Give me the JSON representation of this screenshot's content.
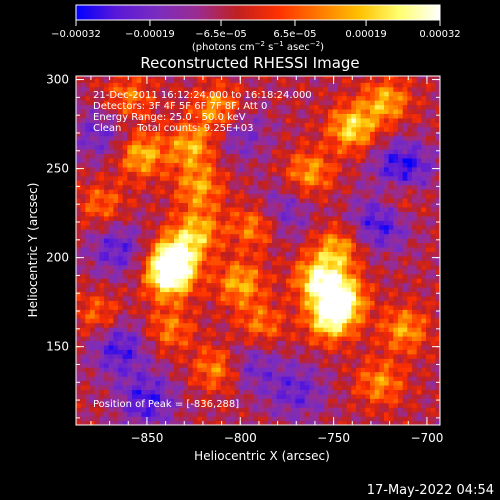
{
  "chart_data": {
    "type": "heatmap",
    "title": "Reconstructed RHESSI Image",
    "xlabel": "Heliocentric X (arcsec)",
    "ylabel": "Heliocentric Y (arcsec)",
    "xlim": [
      -888,
      -693
    ],
    "ylim": [
      106,
      302
    ],
    "x_ticks": [
      -850,
      -800,
      -750,
      -700
    ],
    "x_tick_labels": [
      "−850",
      "−800",
      "−750",
      "−700"
    ],
    "y_ticks": [
      150,
      200,
      250,
      300
    ],
    "y_tick_labels": [
      "150",
      "200",
      "250",
      "300"
    ],
    "colorbar": {
      "range": [
        -0.00032,
        0.00032
      ],
      "ticks": [
        -0.00032,
        -0.00019,
        -6.5e-05,
        6.5e-05,
        0.00019,
        0.00032
      ],
      "tick_labels": [
        "−0.00032",
        "−0.00019",
        "−6.5e−05",
        "6.5e−05",
        "0.00019",
        "0.00032"
      ],
      "unit_main": "(photons cm",
      "unit_exp1": "−2",
      "unit_mid": " s",
      "unit_exp2": "−1",
      "unit_mid2": " asec",
      "unit_exp3": "−2",
      "unit_end": ")",
      "colors": [
        "#0000ff",
        "#5a18d8",
        "#7a2cc0",
        "#9a2c90",
        "#c02020",
        "#ff3000",
        "#ff7800",
        "#ffc000",
        "#ffff70",
        "#ffffff"
      ]
    },
    "info_lines": [
      "21-Dec-2011 16:12:24.000 to 16:18:24.000",
      "Detectors: 3F 4F 5F 6F 7F 8F, Att 0",
      "Energy Range: 25.0 - 50.0 keV",
      "Clean     Total counts: 9.25E+03"
    ],
    "peak_label": "Position of Peak = [-836,288]",
    "peak": [
      -836,
      288
    ],
    "hotspots": [
      {
        "x": -838,
        "y": 190,
        "v": 1.0
      },
      {
        "x": -835,
        "y": 201,
        "v": 0.85
      },
      {
        "x": -823,
        "y": 215,
        "v": 0.6
      },
      {
        "x": -853,
        "y": 258,
        "v": 0.65
      },
      {
        "x": -822,
        "y": 240,
        "v": 0.55
      },
      {
        "x": -826,
        "y": 263,
        "v": 0.6
      },
      {
        "x": -792,
        "y": 218,
        "v": 0.55
      },
      {
        "x": -800,
        "y": 186,
        "v": 0.6
      },
      {
        "x": -789,
        "y": 162,
        "v": 0.45
      },
      {
        "x": -758,
        "y": 188,
        "v": 0.8
      },
      {
        "x": -746,
        "y": 177,
        "v": 0.95
      },
      {
        "x": -752,
        "y": 165,
        "v": 0.75
      },
      {
        "x": -748,
        "y": 205,
        "v": 0.6
      },
      {
        "x": -763,
        "y": 248,
        "v": 0.55
      },
      {
        "x": -740,
        "y": 273,
        "v": 0.75
      },
      {
        "x": -722,
        "y": 288,
        "v": 0.6
      },
      {
        "x": -812,
        "y": 284,
        "v": 0.6
      },
      {
        "x": -860,
        "y": 290,
        "v": 0.45
      },
      {
        "x": -874,
        "y": 230,
        "v": 0.4
      },
      {
        "x": -876,
        "y": 168,
        "v": 0.4
      },
      {
        "x": -812,
        "y": 138,
        "v": 0.55
      },
      {
        "x": -838,
        "y": 160,
        "v": 0.45
      },
      {
        "x": -725,
        "y": 130,
        "v": 0.5
      },
      {
        "x": -712,
        "y": 160,
        "v": 0.55
      },
      {
        "x": -715,
        "y": 235,
        "v": 0.45
      }
    ],
    "cold_spots": [
      {
        "x": -713,
        "y": 250,
        "v": 0.9
      },
      {
        "x": -725,
        "y": 220,
        "v": 0.75
      },
      {
        "x": -866,
        "y": 205,
        "v": 0.6
      },
      {
        "x": -865,
        "y": 150,
        "v": 0.7
      },
      {
        "x": -850,
        "y": 120,
        "v": 0.7
      },
      {
        "x": -795,
        "y": 140,
        "v": 0.5
      },
      {
        "x": -778,
        "y": 225,
        "v": 0.5
      },
      {
        "x": -800,
        "y": 270,
        "v": 0.45
      },
      {
        "x": -770,
        "y": 125,
        "v": 0.55
      },
      {
        "x": -875,
        "y": 270,
        "v": 0.5
      }
    ]
  },
  "timestamp": "17-May-2022 04:54"
}
